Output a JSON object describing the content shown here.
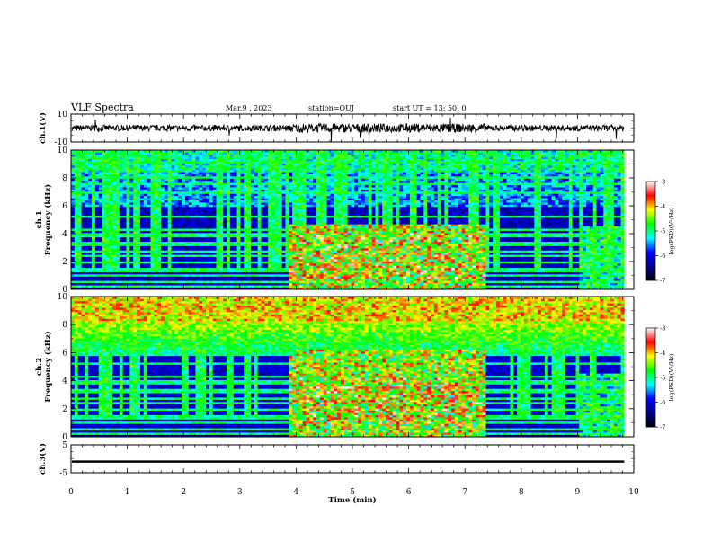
{
  "header": {
    "title": "VLF Spectra",
    "date": "Mar.9 , 2023",
    "station": "station=OUJ",
    "start": "start UT = 13: 50: 0"
  },
  "chart_data": [
    {
      "type": "line",
      "ylabel": "ch.1(V)",
      "ylim": [
        -10,
        10
      ],
      "yticks": [
        "10",
        "-10"
      ],
      "description_values": "broadband waveform, amplitude roughly -3..3 V with spikes up to ~5 V"
    },
    {
      "type": "heatmap",
      "ylabel": "ch.1 Frequency (kHz)",
      "ylim": [
        0,
        10
      ],
      "yticks": [
        "0",
        "2",
        "4",
        "6",
        "8",
        "10"
      ],
      "colorbar": {
        "label": "log(PSD)(V²/Hz)",
        "range": [
          -7,
          -3
        ],
        "ticks": [
          "-3",
          "-4",
          "-5",
          "-6",
          "-7"
        ]
      }
    },
    {
      "type": "heatmap",
      "ylabel": "ch.2 Frequency (kHz)",
      "ylim": [
        0,
        10
      ],
      "yticks": [
        "0",
        "2",
        "4",
        "6",
        "8",
        "10"
      ],
      "colorbar": {
        "label": "log(PSD)(V²/Hz)",
        "range": [
          -7,
          -3
        ],
        "ticks": [
          "-3",
          "-4",
          "-5",
          "-6",
          "-7"
        ]
      }
    },
    {
      "type": "line",
      "ylabel": "ch.3(V)",
      "ylim": [
        -5,
        5
      ],
      "yticks": [
        "5",
        "-5"
      ],
      "values_note": "constant near -1 V"
    }
  ],
  "xaxis": {
    "label": "Time (min)",
    "range": [
      0,
      10
    ],
    "ticks": [
      "0",
      "1",
      "2",
      "3",
      "4",
      "5",
      "6",
      "7",
      "8",
      "9",
      "10"
    ]
  },
  "colors": {
    "cmap": [
      "#000000",
      "#00008f",
      "#0000ff",
      "#00ffff",
      "#00ff00",
      "#ffff00",
      "#ff0000",
      "#ffffff"
    ]
  }
}
